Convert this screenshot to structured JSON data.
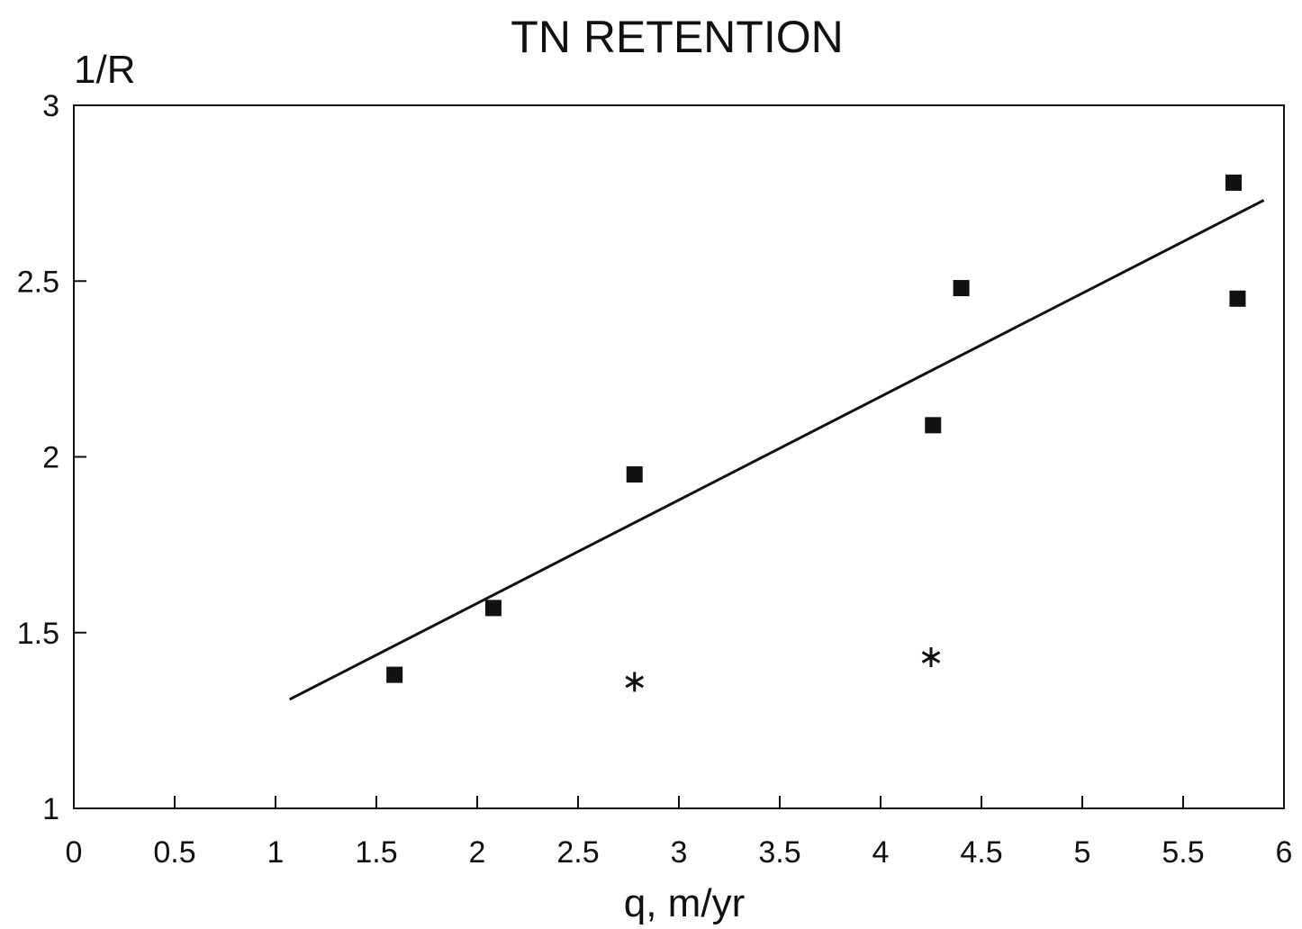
{
  "chart_data": {
    "type": "scatter",
    "title": "TN RETENTION",
    "xlabel": "q, m/yr",
    "ylabel": "1/R",
    "xlim": [
      0,
      6
    ],
    "ylim": [
      1,
      3
    ],
    "xticks": [
      "0",
      "0.5",
      "1",
      "1.5",
      "2",
      "2.5",
      "3",
      "3.5",
      "4",
      "4.5",
      "5",
      "5.5",
      "6"
    ],
    "yticks": [
      "1",
      "1.5",
      "2",
      "2.5",
      "3"
    ],
    "grid": false,
    "legend": "none",
    "series": [
      {
        "marker": "square",
        "points": [
          {
            "x": 1.59,
            "y": 1.38
          },
          {
            "x": 2.08,
            "y": 1.57
          },
          {
            "x": 2.78,
            "y": 1.95
          },
          {
            "x": 4.26,
            "y": 2.09
          },
          {
            "x": 4.4,
            "y": 2.48
          },
          {
            "x": 5.75,
            "y": 2.78
          },
          {
            "x": 5.77,
            "y": 2.45
          }
        ]
      },
      {
        "marker": "asterisk",
        "points": [
          {
            "x": 2.78,
            "y": 1.36
          },
          {
            "x": 4.25,
            "y": 1.43
          }
        ]
      }
    ],
    "fit_line": {
      "x": [
        1.07,
        5.9
      ],
      "y": [
        1.31,
        2.73
      ]
    },
    "colors": {
      "ink": "#111111",
      "background": "#ffffff"
    }
  }
}
